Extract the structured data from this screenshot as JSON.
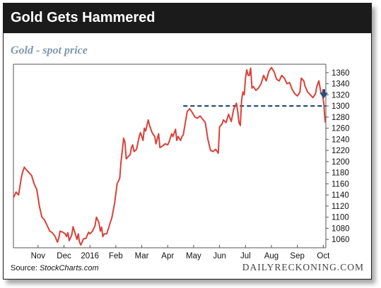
{
  "header": {
    "title": "Gold Gets Hammered"
  },
  "subtitle": "Gold - spot price",
  "footer": {
    "source_label": "Source: ",
    "source_value": "StockCharts.com",
    "brand": "DAILYRECKONING.COM"
  },
  "colors": {
    "line": "#d9413a",
    "dashed": "#2a4d7a",
    "arrow": "#2a4d7a",
    "header_bg": "#1b1b1b",
    "subtitle": "#7f97ad"
  },
  "chart_data": {
    "type": "line",
    "title": "Gold - spot price",
    "x_tick_labels": [
      "Nov",
      "Dec",
      "2016",
      "Feb",
      "Mar",
      "Apr",
      "May",
      "Jun",
      "Jul",
      "Aug",
      "Sep",
      "Oct"
    ],
    "x_tick_positions": [
      0.95,
      1.95,
      2.95,
      3.95,
      4.95,
      5.95,
      6.95,
      7.95,
      8.95,
      9.95,
      10.95,
      11.95
    ],
    "xlim": [
      0,
      12.05
    ],
    "ylim": [
      1045,
      1375
    ],
    "y_ticks": [
      1060,
      1080,
      1100,
      1120,
      1140,
      1160,
      1180,
      1200,
      1220,
      1240,
      1260,
      1280,
      1300,
      1320,
      1340,
      1360
    ],
    "y_axis_side": "right",
    "grid": false,
    "reference_line": {
      "value": 1300,
      "style": "dashed",
      "x_start": 6.55
    },
    "annotation": {
      "type": "down-arrow",
      "x": 12.05,
      "y": 1320
    },
    "series": [
      {
        "points": [
          [
            0.0,
            1135
          ],
          [
            0.1,
            1145
          ],
          [
            0.2,
            1140
          ],
          [
            0.3,
            1170
          ],
          [
            0.35,
            1180
          ],
          [
            0.42,
            1190
          ],
          [
            0.5,
            1185
          ],
          [
            0.6,
            1180
          ],
          [
            0.7,
            1175
          ],
          [
            0.8,
            1160
          ],
          [
            0.9,
            1150
          ],
          [
            1.0,
            1120
          ],
          [
            1.1,
            1100
          ],
          [
            1.2,
            1095
          ],
          [
            1.3,
            1085
          ],
          [
            1.4,
            1075
          ],
          [
            1.5,
            1072
          ],
          [
            1.6,
            1066
          ],
          [
            1.7,
            1055
          ],
          [
            1.75,
            1063
          ],
          [
            1.8,
            1075
          ],
          [
            1.9,
            1073
          ],
          [
            2.0,
            1070
          ],
          [
            2.05,
            1065
          ],
          [
            2.1,
            1072
          ],
          [
            2.15,
            1058
          ],
          [
            2.25,
            1068
          ],
          [
            2.3,
            1083
          ],
          [
            2.35,
            1075
          ],
          [
            2.4,
            1068
          ],
          [
            2.45,
            1060
          ],
          [
            2.5,
            1070
          ],
          [
            2.55,
            1055
          ],
          [
            2.6,
            1050
          ],
          [
            2.7,
            1061
          ],
          [
            2.8,
            1062
          ],
          [
            2.9,
            1073
          ],
          [
            2.95,
            1070
          ],
          [
            3.05,
            1075
          ],
          [
            3.15,
            1085
          ],
          [
            3.2,
            1100
          ],
          [
            3.3,
            1090
          ],
          [
            3.35,
            1075
          ],
          [
            3.4,
            1082
          ],
          [
            3.45,
            1065
          ],
          [
            3.5,
            1070
          ],
          [
            3.6,
            1070
          ],
          [
            3.7,
            1085
          ],
          [
            3.8,
            1100
          ],
          [
            3.9,
            1125
          ],
          [
            4.0,
            1160
          ],
          [
            4.1,
            1170
          ],
          [
            4.15,
            1200
          ],
          [
            4.2,
            1220
          ],
          [
            4.25,
            1242
          ],
          [
            4.3,
            1235
          ],
          [
            4.35,
            1205
          ],
          [
            4.45,
            1210
          ],
          [
            4.5,
            1212
          ],
          [
            4.55,
            1225
          ],
          [
            4.6,
            1230
          ],
          [
            4.65,
            1218
          ],
          [
            4.75,
            1222
          ],
          [
            4.85,
            1245
          ],
          [
            4.9,
            1252
          ],
          [
            5.0,
            1238
          ],
          [
            5.05,
            1260
          ],
          [
            5.1,
            1255
          ],
          [
            5.2,
            1275
          ],
          [
            5.25,
            1265
          ],
          [
            5.35,
            1252
          ],
          [
            5.45,
            1245
          ],
          [
            5.5,
            1232
          ],
          [
            5.6,
            1250
          ],
          [
            5.65,
            1225
          ],
          [
            5.75,
            1228
          ],
          [
            5.85,
            1232
          ],
          [
            5.95,
            1230
          ],
          [
            6.0,
            1235
          ],
          [
            6.1,
            1250
          ],
          [
            6.15,
            1245
          ],
          [
            6.25,
            1258
          ],
          [
            6.3,
            1238
          ],
          [
            6.35,
            1245
          ],
          [
            6.45,
            1238
          ],
          [
            6.5,
            1245
          ],
          [
            6.55,
            1248
          ],
          [
            6.6,
            1262
          ],
          [
            6.65,
            1275
          ],
          [
            6.7,
            1290
          ],
          [
            6.8,
            1295
          ],
          [
            6.9,
            1288
          ],
          [
            7.0,
            1280
          ],
          [
            7.1,
            1278
          ],
          [
            7.2,
            1282
          ],
          [
            7.3,
            1276
          ],
          [
            7.4,
            1270
          ],
          [
            7.45,
            1255
          ],
          [
            7.5,
            1240
          ],
          [
            7.6,
            1220
          ],
          [
            7.7,
            1218
          ],
          [
            7.8,
            1222
          ],
          [
            7.9,
            1215
          ],
          [
            7.95,
            1262
          ],
          [
            8.05,
            1268
          ],
          [
            8.1,
            1275
          ],
          [
            8.2,
            1270
          ],
          [
            8.3,
            1285
          ],
          [
            8.4,
            1272
          ],
          [
            8.5,
            1295
          ],
          [
            8.6,
            1305
          ],
          [
            8.65,
            1290
          ],
          [
            8.7,
            1270
          ],
          [
            8.75,
            1265
          ],
          [
            8.8,
            1310
          ],
          [
            8.85,
            1325
          ],
          [
            8.9,
            1320
          ],
          [
            8.95,
            1350
          ],
          [
            9.0,
            1365
          ],
          [
            9.05,
            1355
          ],
          [
            9.1,
            1355
          ],
          [
            9.15,
            1368
          ],
          [
            9.2,
            1332
          ],
          [
            9.25,
            1335
          ],
          [
            9.35,
            1328
          ],
          [
            9.45,
            1332
          ],
          [
            9.55,
            1340
          ],
          [
            9.65,
            1355
          ],
          [
            9.75,
            1345
          ],
          [
            9.85,
            1362
          ],
          [
            9.95,
            1369
          ],
          [
            10.05,
            1362
          ],
          [
            10.15,
            1348
          ],
          [
            10.25,
            1345
          ],
          [
            10.35,
            1355
          ],
          [
            10.45,
            1350
          ],
          [
            10.55,
            1340
          ],
          [
            10.65,
            1342
          ],
          [
            10.75,
            1330
          ],
          [
            10.85,
            1322
          ],
          [
            10.95,
            1318
          ],
          [
            11.05,
            1325
          ],
          [
            11.1,
            1350
          ],
          [
            11.2,
            1345
          ],
          [
            11.25,
            1335
          ],
          [
            11.35,
            1325
          ],
          [
            11.45,
            1320
          ],
          [
            11.55,
            1315
          ],
          [
            11.65,
            1322
          ],
          [
            11.7,
            1335
          ],
          [
            11.78,
            1345
          ],
          [
            11.85,
            1326
          ],
          [
            11.92,
            1320
          ],
          [
            11.97,
            1305
          ],
          [
            12.0,
            1283
          ],
          [
            12.03,
            1270
          ]
        ]
      }
    ]
  }
}
